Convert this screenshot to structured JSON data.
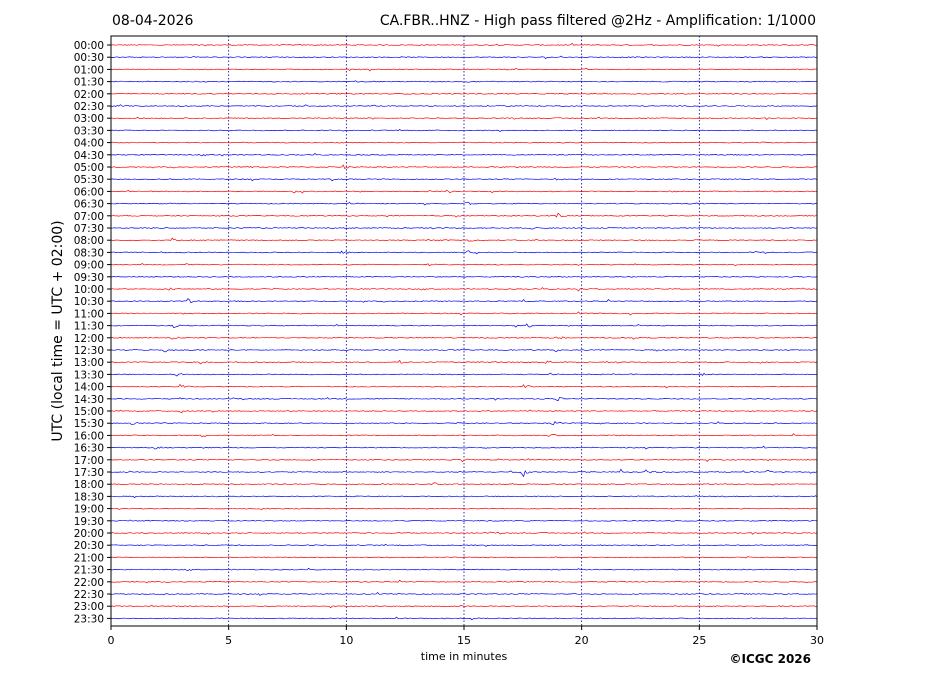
{
  "header": {
    "date": "08-04-2026",
    "title": "CA.FBR..HNZ - High pass filtered @2Hz - Amplification: 1/1000"
  },
  "footer": {
    "copyright": "©ICGC 2026"
  },
  "colors": {
    "odd_trace": "#ff0000",
    "even_trace": "#0000ff",
    "grid": "#000080"
  },
  "chart_data": {
    "type": "line",
    "title": "CA.FBR..HNZ - High pass filtered @2Hz - Amplification: 1/1000",
    "xlabel": "time in minutes",
    "ylabel": "UTC (local time = UTC + 02:00)",
    "xlim": [
      0,
      30
    ],
    "x_ticks": [
      0,
      5,
      10,
      15,
      20,
      25,
      30
    ],
    "vertical_grid_minutes": [
      5,
      10,
      15,
      20,
      25
    ],
    "grid": "dotted vertical",
    "row_labels": [
      "00:00",
      "00:30",
      "01:00",
      "01:30",
      "02:00",
      "02:30",
      "03:00",
      "03:30",
      "04:00",
      "04:30",
      "05:00",
      "05:30",
      "06:00",
      "06:30",
      "07:00",
      "07:30",
      "08:00",
      "08:30",
      "09:00",
      "09:30",
      "10:00",
      "10:30",
      "11:00",
      "11:30",
      "12:00",
      "12:30",
      "13:00",
      "13:30",
      "14:00",
      "14:30",
      "15:00",
      "15:30",
      "16:00",
      "16:30",
      "17:00",
      "17:30",
      "18:00",
      "18:30",
      "19:00",
      "19:30",
      "20:00",
      "20:30",
      "21:00",
      "21:30",
      "22:00",
      "22:30",
      "23:00",
      "23:30"
    ],
    "trace_color_order": [
      "red",
      "blue"
    ],
    "events": [
      {
        "row": "04:30",
        "minute": 4.6,
        "amp": 0.35
      },
      {
        "row": "05:00",
        "minute": 5.8,
        "amp": 0.4
      },
      {
        "row": "05:00",
        "minute": 9.9,
        "amp": 0.45
      },
      {
        "row": "05:30",
        "minute": 9.4,
        "amp": 0.35
      },
      {
        "row": "05:30",
        "minute": 18.9,
        "amp": 0.3
      },
      {
        "row": "06:00",
        "minute": 7.8,
        "amp": 0.3
      },
      {
        "row": "06:00",
        "minute": 14.3,
        "amp": 0.3
      },
      {
        "row": "06:00",
        "minute": 23.6,
        "amp": 0.3
      },
      {
        "row": "06:30",
        "minute": 15.1,
        "amp": 0.4
      },
      {
        "row": "07:00",
        "minute": 19.0,
        "amp": 0.45
      },
      {
        "row": "07:30",
        "minute": 17.8,
        "amp": 0.35
      },
      {
        "row": "08:00",
        "minute": 2.6,
        "amp": 0.4
      },
      {
        "row": "08:00",
        "minute": 15.2,
        "amp": 0.35
      },
      {
        "row": "08:00",
        "minute": 17.9,
        "amp": 0.4
      },
      {
        "row": "08:30",
        "minute": 9.8,
        "amp": 0.4
      },
      {
        "row": "08:30",
        "minute": 15.2,
        "amp": 0.35
      },
      {
        "row": "09:00",
        "minute": 3.2,
        "amp": 0.4
      },
      {
        "row": "09:00",
        "minute": 13.5,
        "amp": 0.35
      },
      {
        "row": "09:30",
        "minute": 17.7,
        "amp": 0.35
      },
      {
        "row": "10:00",
        "minute": 2.5,
        "amp": 0.35
      },
      {
        "row": "10:00",
        "minute": 19.8,
        "amp": 0.45
      },
      {
        "row": "10:30",
        "minute": 3.3,
        "amp": 0.45
      },
      {
        "row": "10:30",
        "minute": 17.5,
        "amp": 0.45
      },
      {
        "row": "11:00",
        "minute": 3.1,
        "amp": 0.35
      },
      {
        "row": "11:00",
        "minute": 22.1,
        "amp": 0.35
      },
      {
        "row": "11:30",
        "minute": 2.7,
        "amp": 0.35
      },
      {
        "row": "11:30",
        "minute": 17.7,
        "amp": 0.35
      },
      {
        "row": "12:00",
        "minute": 2.6,
        "amp": 0.3
      },
      {
        "row": "12:00",
        "minute": 19.0,
        "amp": 0.3
      },
      {
        "row": "12:30",
        "minute": 2.3,
        "amp": 0.4
      },
      {
        "row": "12:30",
        "minute": 18.9,
        "amp": 0.35
      },
      {
        "row": "13:00",
        "minute": 3.8,
        "amp": 0.35
      },
      {
        "row": "13:00",
        "minute": 12.3,
        "amp": 0.45
      },
      {
        "row": "13:00",
        "minute": 18.5,
        "amp": 0.35
      },
      {
        "row": "13:30",
        "minute": 2.8,
        "amp": 0.35
      },
      {
        "row": "13:30",
        "minute": 18.7,
        "amp": 0.3
      },
      {
        "row": "13:30",
        "minute": 25.0,
        "amp": 0.35
      },
      {
        "row": "14:00",
        "minute": 3.0,
        "amp": 0.35
      },
      {
        "row": "14:00",
        "minute": 17.6,
        "amp": 0.35
      },
      {
        "row": "14:30",
        "minute": 2.8,
        "amp": 0.35
      },
      {
        "row": "14:30",
        "minute": 19.0,
        "amp": 0.35
      },
      {
        "row": "15:00",
        "minute": 3.0,
        "amp": 0.35
      },
      {
        "row": "15:00",
        "minute": 17.6,
        "amp": 0.35
      },
      {
        "row": "15:30",
        "minute": 0.9,
        "amp": 0.4
      },
      {
        "row": "15:30",
        "minute": 18.8,
        "amp": 0.35
      },
      {
        "row": "16:00",
        "minute": 3.9,
        "amp": 0.35
      },
      {
        "row": "16:00",
        "minute": 18.8,
        "amp": 0.35
      },
      {
        "row": "16:30",
        "minute": 1.9,
        "amp": 0.35
      },
      {
        "row": "17:00",
        "minute": 15.0,
        "amp": 0.3
      },
      {
        "row": "17:30",
        "minute": 17.0,
        "amp": 0.35
      },
      {
        "row": "17:30",
        "minute": 17.5,
        "amp": 0.9
      },
      {
        "row": "17:30",
        "minute": 21.7,
        "amp": 0.9
      },
      {
        "row": "17:30",
        "minute": 22.8,
        "amp": 0.4
      },
      {
        "row": "17:30",
        "minute": 27.9,
        "amp": 0.3
      },
      {
        "row": "18:00",
        "minute": 13.8,
        "amp": 0.3
      }
    ]
  }
}
